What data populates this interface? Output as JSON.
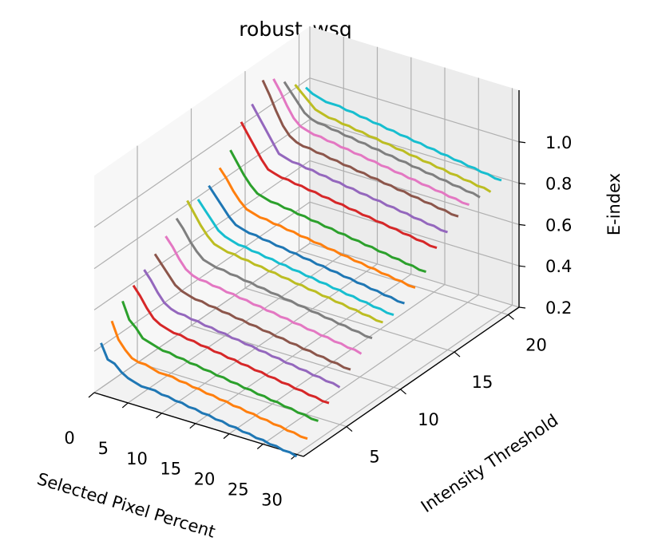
{
  "chart_data": {
    "type": "line",
    "title": "robust_wsq",
    "xlabel": "Selected Pixel Percent",
    "ylabel": "Intensity Threshold",
    "zlabel": "E-index",
    "x_ticks": [
      "0",
      "5",
      "10",
      "15",
      "20",
      "25",
      "30"
    ],
    "y_ticks": [
      "5",
      "10",
      "15",
      "20"
    ],
    "z_ticks": [
      "0.2",
      "0.4",
      "0.6",
      "0.8",
      "1.0"
    ],
    "xlim": [
      0,
      31
    ],
    "ylim": [
      1,
      21
    ],
    "zlim": [
      0.2,
      1.25
    ],
    "grid": true,
    "x": [
      1,
      2,
      3,
      4,
      5,
      6,
      7,
      8,
      9,
      10,
      11,
      12,
      13,
      14,
      15,
      16,
      17,
      18,
      19,
      20,
      21,
      22,
      23,
      24,
      25,
      26,
      27,
      28,
      29,
      30
    ],
    "series": [
      {
        "intensity_threshold": 1,
        "color": "#1f77b4",
        "values": [
          0.45,
          0.38,
          0.37,
          0.34,
          0.32,
          0.31,
          0.3,
          0.3,
          0.3,
          0.29,
          0.29,
          0.28,
          0.28,
          0.27,
          0.27,
          0.26,
          0.26,
          0.25,
          0.25,
          0.24,
          0.24,
          0.23,
          0.23,
          0.22,
          0.22,
          0.21,
          0.21,
          0.2,
          0.2,
          0.19
        ]
      },
      {
        "intensity_threshold": 2,
        "color": "#ff7f0e",
        "values": [
          0.52,
          0.44,
          0.4,
          0.37,
          0.36,
          0.36,
          0.35,
          0.34,
          0.34,
          0.34,
          0.33,
          0.33,
          0.32,
          0.32,
          0.31,
          0.31,
          0.3,
          0.3,
          0.29,
          0.29,
          0.28,
          0.28,
          0.27,
          0.27,
          0.26,
          0.26,
          0.25,
          0.25,
          0.24,
          0.24
        ]
      },
      {
        "intensity_threshold": 3,
        "color": "#2ca02c",
        "values": [
          0.58,
          0.5,
          0.47,
          0.43,
          0.42,
          0.41,
          0.4,
          0.4,
          0.39,
          0.39,
          0.38,
          0.38,
          0.37,
          0.37,
          0.36,
          0.36,
          0.35,
          0.35,
          0.34,
          0.34,
          0.33,
          0.33,
          0.32,
          0.32,
          0.31,
          0.31,
          0.3,
          0.3,
          0.29,
          0.29
        ]
      },
      {
        "intensity_threshold": 4,
        "color": "#d62728",
        "values": [
          0.62,
          0.58,
          0.53,
          0.49,
          0.47,
          0.46,
          0.45,
          0.45,
          0.44,
          0.44,
          0.43,
          0.43,
          0.42,
          0.42,
          0.41,
          0.41,
          0.4,
          0.4,
          0.39,
          0.39,
          0.38,
          0.38,
          0.37,
          0.37,
          0.36,
          0.36,
          0.35,
          0.35,
          0.34,
          0.34
        ]
      },
      {
        "intensity_threshold": 5,
        "color": "#9467bd",
        "values": [
          0.66,
          0.62,
          0.57,
          0.53,
          0.51,
          0.5,
          0.5,
          0.49,
          0.49,
          0.48,
          0.48,
          0.47,
          0.47,
          0.46,
          0.46,
          0.45,
          0.45,
          0.44,
          0.44,
          0.43,
          0.43,
          0.42,
          0.42,
          0.41,
          0.41,
          0.4,
          0.4,
          0.39,
          0.39,
          0.38
        ]
      },
      {
        "intensity_threshold": 6,
        "color": "#8c564b",
        "values": [
          0.7,
          0.66,
          0.62,
          0.58,
          0.56,
          0.55,
          0.54,
          0.54,
          0.53,
          0.53,
          0.52,
          0.52,
          0.51,
          0.51,
          0.5,
          0.5,
          0.49,
          0.49,
          0.48,
          0.48,
          0.47,
          0.47,
          0.46,
          0.46,
          0.45,
          0.45,
          0.44,
          0.44,
          0.43,
          0.43
        ]
      },
      {
        "intensity_threshold": 7,
        "color": "#e377c2",
        "values": [
          0.75,
          0.71,
          0.66,
          0.62,
          0.6,
          0.59,
          0.59,
          0.58,
          0.58,
          0.57,
          0.57,
          0.56,
          0.56,
          0.55,
          0.55,
          0.54,
          0.54,
          0.53,
          0.53,
          0.52,
          0.52,
          0.51,
          0.51,
          0.5,
          0.5,
          0.49,
          0.49,
          0.48,
          0.48,
          0.47
        ]
      },
      {
        "intensity_threshold": 8,
        "color": "#7f7f7f",
        "values": [
          0.8,
          0.76,
          0.71,
          0.67,
          0.64,
          0.63,
          0.62,
          0.62,
          0.61,
          0.61,
          0.6,
          0.6,
          0.59,
          0.59,
          0.58,
          0.58,
          0.57,
          0.57,
          0.56,
          0.56,
          0.55,
          0.55,
          0.54,
          0.54,
          0.53,
          0.53,
          0.52,
          0.52,
          0.51,
          0.51
        ]
      },
      {
        "intensity_threshold": 9,
        "color": "#bcbd22",
        "values": [
          0.85,
          0.8,
          0.75,
          0.71,
          0.68,
          0.67,
          0.66,
          0.66,
          0.65,
          0.65,
          0.64,
          0.64,
          0.63,
          0.63,
          0.62,
          0.62,
          0.61,
          0.61,
          0.6,
          0.6,
          0.59,
          0.59,
          0.58,
          0.58,
          0.57,
          0.57,
          0.56,
          0.56,
          0.55,
          0.55
        ]
      },
      {
        "intensity_threshold": 10,
        "color": "#17becf",
        "values": [
          0.82,
          0.78,
          0.74,
          0.7,
          0.68,
          0.67,
          0.66,
          0.66,
          0.65,
          0.65,
          0.64,
          0.64,
          0.63,
          0.63,
          0.62,
          0.62,
          0.61,
          0.61,
          0.6,
          0.6,
          0.59,
          0.59,
          0.58,
          0.58,
          0.57,
          0.57,
          0.56,
          0.56,
          0.55,
          0.55
        ]
      },
      {
        "intensity_threshold": 11,
        "color": "#1f77b4",
        "values": [
          0.85,
          0.81,
          0.77,
          0.73,
          0.7,
          0.69,
          0.68,
          0.68,
          0.67,
          0.67,
          0.66,
          0.66,
          0.65,
          0.65,
          0.64,
          0.64,
          0.63,
          0.63,
          0.62,
          0.62,
          0.61,
          0.61,
          0.6,
          0.6,
          0.59,
          0.59,
          0.58,
          0.58,
          0.57,
          0.57
        ]
      },
      {
        "intensity_threshold": 12,
        "color": "#ff7f0e",
        "values": [
          0.9,
          0.86,
          0.81,
          0.77,
          0.74,
          0.73,
          0.72,
          0.72,
          0.71,
          0.71,
          0.7,
          0.7,
          0.69,
          0.69,
          0.68,
          0.68,
          0.67,
          0.67,
          0.66,
          0.66,
          0.65,
          0.65,
          0.64,
          0.64,
          0.63,
          0.63,
          0.62,
          0.62,
          0.61,
          0.61
        ]
      },
      {
        "intensity_threshold": 13,
        "color": "#2ca02c",
        "values": [
          0.95,
          0.9,
          0.85,
          0.81,
          0.78,
          0.77,
          0.76,
          0.76,
          0.75,
          0.75,
          0.74,
          0.74,
          0.73,
          0.73,
          0.72,
          0.72,
          0.71,
          0.71,
          0.7,
          0.7,
          0.69,
          0.69,
          0.68,
          0.68,
          0.67,
          0.67,
          0.66,
          0.66,
          0.65,
          0.65
        ]
      },
      {
        "intensity_threshold": 14,
        "color": "#d62728",
        "values": [
          1.05,
          1.0,
          0.95,
          0.9,
          0.86,
          0.85,
          0.84,
          0.84,
          0.83,
          0.83,
          0.82,
          0.82,
          0.81,
          0.81,
          0.8,
          0.8,
          0.79,
          0.79,
          0.78,
          0.78,
          0.77,
          0.77,
          0.76,
          0.76,
          0.75,
          0.75,
          0.74,
          0.74,
          0.73,
          0.73
        ]
      },
      {
        "intensity_threshold": 15,
        "color": "#9467bd",
        "values": [
          1.1,
          1.05,
          1.0,
          0.95,
          0.9,
          0.89,
          0.88,
          0.88,
          0.87,
          0.87,
          0.86,
          0.86,
          0.85,
          0.85,
          0.84,
          0.84,
          0.83,
          0.83,
          0.82,
          0.82,
          0.81,
          0.81,
          0.8,
          0.8,
          0.79,
          0.79,
          0.78,
          0.78,
          0.77,
          0.77
        ]
      },
      {
        "intensity_threshold": 16,
        "color": "#8c564b",
        "values": [
          1.18,
          1.12,
          1.05,
          0.99,
          0.95,
          0.93,
          0.92,
          0.92,
          0.91,
          0.91,
          0.9,
          0.9,
          0.89,
          0.89,
          0.88,
          0.88,
          0.87,
          0.87,
          0.86,
          0.86,
          0.85,
          0.85,
          0.84,
          0.84,
          0.83,
          0.83,
          0.82,
          0.82,
          0.81,
          0.81
        ]
      },
      {
        "intensity_threshold": 17,
        "color": "#e377c2",
        "values": [
          1.15,
          1.1,
          1.04,
          0.99,
          0.96,
          0.95,
          0.94,
          0.94,
          0.93,
          0.93,
          0.92,
          0.92,
          0.91,
          0.91,
          0.9,
          0.9,
          0.89,
          0.89,
          0.88,
          0.88,
          0.87,
          0.87,
          0.86,
          0.86,
          0.85,
          0.85,
          0.84,
          0.84,
          0.83,
          0.83
        ]
      },
      {
        "intensity_threshold": 18,
        "color": "#7f7f7f",
        "values": [
          1.1,
          1.06,
          1.02,
          0.98,
          0.96,
          0.95,
          0.95,
          0.94,
          0.94,
          0.93,
          0.93,
          0.92,
          0.92,
          0.91,
          0.91,
          0.9,
          0.9,
          0.89,
          0.89,
          0.88,
          0.88,
          0.87,
          0.87,
          0.86,
          0.86,
          0.85,
          0.85,
          0.84,
          0.84,
          0.83
        ]
      },
      {
        "intensity_threshold": 19,
        "color": "#bcbd22",
        "values": [
          1.05,
          1.02,
          0.99,
          0.96,
          0.95,
          0.94,
          0.94,
          0.93,
          0.93,
          0.92,
          0.92,
          0.91,
          0.91,
          0.9,
          0.9,
          0.89,
          0.89,
          0.88,
          0.88,
          0.87,
          0.87,
          0.86,
          0.86,
          0.85,
          0.85,
          0.84,
          0.84,
          0.83,
          0.83,
          0.82
        ]
      },
      {
        "intensity_threshold": 20,
        "color": "#17becf",
        "values": [
          1.0,
          0.98,
          0.97,
          0.96,
          0.96,
          0.96,
          0.95,
          0.95,
          0.94,
          0.94,
          0.93,
          0.93,
          0.92,
          0.92,
          0.91,
          0.91,
          0.9,
          0.9,
          0.89,
          0.89,
          0.88,
          0.88,
          0.87,
          0.87,
          0.86,
          0.86,
          0.85,
          0.85,
          0.84,
          0.84
        ]
      }
    ]
  }
}
